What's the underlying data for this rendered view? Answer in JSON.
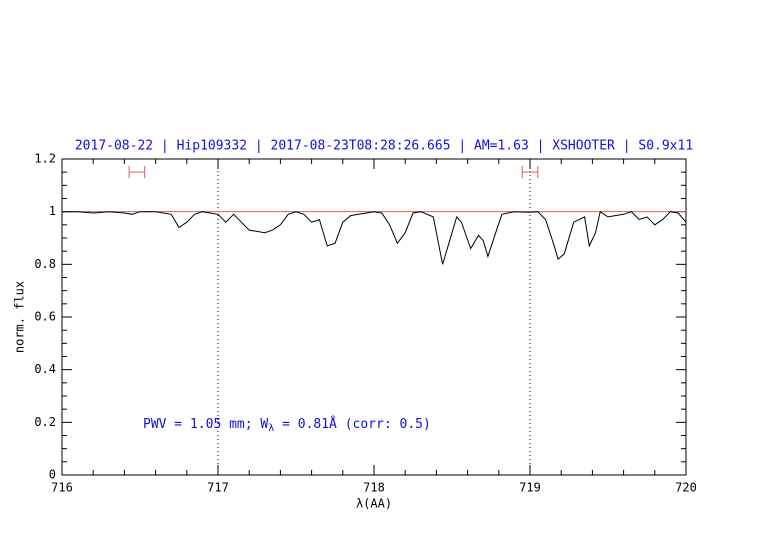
{
  "chart_data": {
    "type": "line",
    "title": "2017-08-22 | Hip109332 | 2017-08-23T08:28:26.665 | AM=1.63 | XSHOOTER | S0.9x11",
    "xlabel": "λ(AA)",
    "ylabel": "norm. flux",
    "annotation": [
      "PWV = 1.05 mm; W",
      "λ",
      " = 0.81Å (corr: 0.5)"
    ],
    "xlim": [
      716,
      720
    ],
    "ylim": [
      0,
      1.2
    ],
    "xticks": [
      716,
      717,
      718,
      719,
      720
    ],
    "yticks": [
      0,
      0.2,
      0.4,
      0.6,
      0.8,
      1,
      1.2
    ],
    "vlines": [
      717,
      719
    ],
    "continuum": {
      "value": 1,
      "color": "#e06060"
    },
    "ranges": {
      "y": 1.15,
      "color": "#e06060",
      "spans": [
        [
          716.43,
          716.53
        ],
        [
          718.95,
          719.05
        ]
      ]
    },
    "series": [
      {
        "name": "spectrum",
        "color": "#000000",
        "x": [
          716.0,
          716.1,
          716.2,
          716.3,
          716.4,
          716.45,
          716.5,
          716.6,
          716.7,
          716.75,
          716.8,
          716.85,
          716.9,
          717.0,
          717.05,
          717.1,
          717.15,
          717.2,
          717.3,
          717.35,
          717.4,
          717.45,
          717.5,
          717.55,
          717.6,
          717.65,
          717.7,
          717.75,
          717.8,
          717.85,
          717.9,
          718.0,
          718.05,
          718.1,
          718.15,
          718.2,
          718.25,
          718.3,
          718.38,
          718.44,
          718.48,
          718.53,
          718.56,
          718.62,
          718.67,
          718.7,
          718.73,
          718.78,
          718.82,
          718.9,
          719.0,
          719.05,
          719.1,
          719.15,
          719.18,
          719.22,
          719.28,
          719.35,
          719.38,
          719.42,
          719.45,
          719.5,
          719.6,
          719.65,
          719.7,
          719.75,
          719.8,
          719.85,
          719.9,
          719.95,
          720.0
        ],
        "values": [
          1.0,
          1.0,
          0.995,
          1.0,
          0.995,
          0.99,
          1.0,
          1.0,
          0.99,
          0.94,
          0.96,
          0.99,
          1.0,
          0.99,
          0.96,
          0.99,
          0.96,
          0.93,
          0.92,
          0.93,
          0.95,
          0.99,
          1.0,
          0.99,
          0.96,
          0.97,
          0.87,
          0.88,
          0.96,
          0.985,
          0.99,
          1.0,
          0.995,
          0.95,
          0.88,
          0.92,
          0.995,
          1.0,
          0.98,
          0.8,
          0.88,
          0.98,
          0.96,
          0.86,
          0.91,
          0.89,
          0.83,
          0.92,
          0.99,
          1.0,
          0.998,
          1.0,
          0.97,
          0.88,
          0.82,
          0.84,
          0.96,
          0.98,
          0.87,
          0.92,
          1.0,
          0.98,
          0.99,
          1.0,
          0.97,
          0.98,
          0.95,
          0.97,
          1.0,
          0.995,
          0.96
        ]
      }
    ]
  }
}
